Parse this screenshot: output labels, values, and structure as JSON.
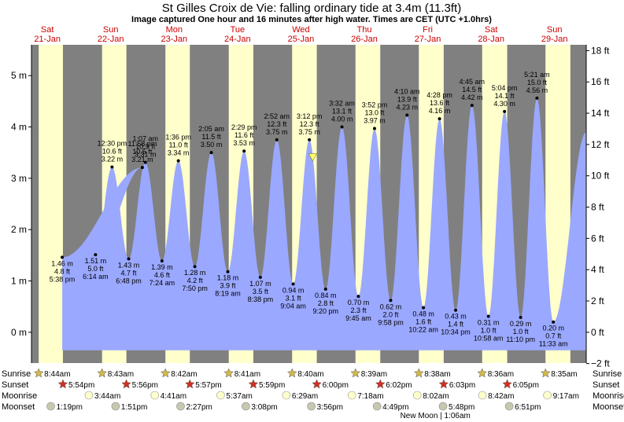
{
  "title": "St Gilles Croix de Vie: falling  ordinary tide at 3.4m (11.3ft)",
  "subtitle": "Image captured One hour and 16 minutes after high water. Times are CET (UTC +1.0hrs)",
  "colors": {
    "night": "#808080",
    "day": "#ffffcc",
    "tide_fill": "#9aa8ff",
    "day_label": "#cc0000",
    "sunrise_star": "#d4b84a",
    "sunset_star": "#d03020",
    "moonrise_disc": "#ffffcc",
    "moonset_disc": "#c8c8b0",
    "current_marker": "#ffff66"
  },
  "days": [
    {
      "name": "Sat",
      "date": "21-Jan"
    },
    {
      "name": "Sun",
      "date": "22-Jan"
    },
    {
      "name": "Mon",
      "date": "23-Jan"
    },
    {
      "name": "Tue",
      "date": "24-Jan"
    },
    {
      "name": "Wed",
      "date": "25-Jan"
    },
    {
      "name": "Thu",
      "date": "26-Jan"
    },
    {
      "name": "Fri",
      "date": "27-Jan"
    },
    {
      "name": "Sat",
      "date": "28-Jan"
    },
    {
      "name": "Sun",
      "date": "29-Jan"
    }
  ],
  "row_labels": {
    "sunrise": "Sunrise",
    "sunset": "Sunset",
    "moonrise": "Moonrise",
    "moonset": "Moonset"
  },
  "sunrise": [
    "8:44am",
    "8:43am",
    "8:42am",
    "8:41am",
    "8:40am",
    "8:39am",
    "8:38am",
    "8:36am",
    "8:35am"
  ],
  "sunset": [
    "5:54pm",
    "5:56pm",
    "5:57pm",
    "5:59pm",
    "6:00pm",
    "6:02pm",
    "6:03pm",
    "6:05pm"
  ],
  "moonrise": [
    "3:44am",
    "4:41am",
    "5:37am",
    "6:29am",
    "7:18am",
    "8:02am",
    "8:42am",
    "9:17am"
  ],
  "moonset": [
    "1:19pm",
    "1:51pm",
    "2:27pm",
    "3:08pm",
    "3:56pm",
    "4:49pm",
    "5:48pm",
    "6:51pm"
  ],
  "moon_phase_note": "New Moon | 1:06am",
  "chart_data": {
    "type": "area",
    "title": "St Gilles Croix de Vie: falling  ordinary tide at 3.4m (11.3ft)",
    "left_axis": {
      "unit": "m",
      "range": [
        -0.6,
        5.6
      ],
      "ticks": [
        "0 m",
        "1 m",
        "2 m",
        "3 m",
        "4 m",
        "5 m"
      ]
    },
    "right_axis": {
      "unit": "ft",
      "ticks": [
        "−2 ft",
        "0 ft",
        "2 ft",
        "4 ft",
        "6 ft",
        "8 ft",
        "10 ft",
        "12 ft",
        "14 ft",
        "16 ft",
        "18 ft"
      ]
    },
    "x_range_days": [
      0.25,
      9.0
    ],
    "tides": [
      {
        "type": "low",
        "day": 0,
        "time": "5:38 pm",
        "m": "1.46 m",
        "ft": "4.8 ft",
        "height": 1.46
      },
      {
        "type": "high",
        "day": 1,
        "time": "11:58 pm",
        "m": "3.21 m",
        "ft": "10.5 ft",
        "height": 3.21
      },
      {
        "type": "low",
        "day": 1,
        "time": "6:14 am",
        "m": "1.51 m",
        "ft": "5.0 ft",
        "height": 1.51
      },
      {
        "type": "high",
        "day": 1,
        "time": "12:30 pm",
        "m": "3.22 m",
        "ft": "10.6 ft",
        "height": 3.22
      },
      {
        "type": "low",
        "day": 1,
        "time": "6:48 pm",
        "m": "1.43 m",
        "ft": "4.7 ft",
        "height": 1.43
      },
      {
        "type": "high",
        "day": 2,
        "time": "1:07 am",
        "m": "3.31 m",
        "ft": "10.9 ft",
        "height": 3.31
      },
      {
        "type": "low",
        "day": 2,
        "time": "7:24 am",
        "m": "1.39 m",
        "ft": "4.6 ft",
        "height": 1.39
      },
      {
        "type": "high",
        "day": 2,
        "time": "1:36 pm",
        "m": "3.34 m",
        "ft": "11.0 ft",
        "height": 3.34
      },
      {
        "type": "low",
        "day": 2,
        "time": "7:50 pm",
        "m": "1.28 m",
        "ft": "4.2 ft",
        "height": 1.28
      },
      {
        "type": "high",
        "day": 3,
        "time": "2:05 am",
        "m": "3.50 m",
        "ft": "11.5 ft",
        "height": 3.5
      },
      {
        "type": "low",
        "day": 3,
        "time": "8:19 am",
        "m": "1.18 m",
        "ft": "3.9 ft",
        "height": 1.18
      },
      {
        "type": "high",
        "day": 3,
        "time": "2:29 pm",
        "m": "3.53 m",
        "ft": "11.6 ft",
        "height": 3.53
      },
      {
        "type": "low",
        "day": 3,
        "time": "8:38 pm",
        "m": "1.07 m",
        "ft": "3.5 ft",
        "height": 1.07
      },
      {
        "type": "high",
        "day": 4,
        "time": "2:52 am",
        "m": "3.75 m",
        "ft": "12.3 ft",
        "height": 3.75
      },
      {
        "type": "low",
        "day": 4,
        "time": "9:04 am",
        "m": "0.94 m",
        "ft": "3.1 ft",
        "height": 0.94
      },
      {
        "type": "high",
        "day": 4,
        "time": "3:12 pm",
        "m": "3.75 m",
        "ft": "12.3 ft",
        "height": 3.75
      },
      {
        "type": "low",
        "day": 4,
        "time": "9:20 pm",
        "m": "0.84 m",
        "ft": "2.8 ft",
        "height": 0.84
      },
      {
        "type": "high",
        "day": 5,
        "time": "3:32 am",
        "m": "4.00 m",
        "ft": "13.1 ft",
        "height": 4.0
      },
      {
        "type": "low",
        "day": 5,
        "time": "9:45 am",
        "m": "0.70 m",
        "ft": "2.3 ft",
        "height": 0.7
      },
      {
        "type": "high",
        "day": 5,
        "time": "3:52 pm",
        "m": "3.97 m",
        "ft": "13.0 ft",
        "height": 3.97
      },
      {
        "type": "low",
        "day": 5,
        "time": "9:58 pm",
        "m": "0.62 m",
        "ft": "2.0 ft",
        "height": 0.62
      },
      {
        "type": "high",
        "day": 6,
        "time": "4:10 am",
        "m": "4.23 m",
        "ft": "13.9 ft",
        "height": 4.23
      },
      {
        "type": "low",
        "day": 6,
        "time": "10:22 am",
        "m": "0.48 m",
        "ft": "1.6 ft",
        "height": 0.48
      },
      {
        "type": "high",
        "day": 6,
        "time": "4:28 pm",
        "m": "4.16 m",
        "ft": "13.6 ft",
        "height": 4.16
      },
      {
        "type": "low",
        "day": 6,
        "time": "10:34 pm",
        "m": "0.43 m",
        "ft": "1.4 ft",
        "height": 0.43
      },
      {
        "type": "high",
        "day": 7,
        "time": "4:45 am",
        "m": "4.42 m",
        "ft": "14.5 ft",
        "height": 4.42
      },
      {
        "type": "low",
        "day": 7,
        "time": "10:58 am",
        "m": "0.31 m",
        "ft": "1.0 ft",
        "height": 0.31
      },
      {
        "type": "high",
        "day": 7,
        "time": "5:04 pm",
        "m": "4.30 m",
        "ft": "14.1 ft",
        "height": 4.3
      },
      {
        "type": "low",
        "day": 7,
        "time": "11:10 pm",
        "m": "0.29 m",
        "ft": "1.0 ft",
        "height": 0.29
      },
      {
        "type": "high",
        "day": 8,
        "time": "5:21 am",
        "m": "4.56 m",
        "ft": "15.0 ft",
        "height": 4.56
      },
      {
        "type": "low",
        "day": 8,
        "time": "11:33 am",
        "m": "0.20 m",
        "ft": "0.7 ft",
        "height": 0.2
      }
    ],
    "current": {
      "day": 4,
      "hour": 16.47,
      "height": 3.4
    }
  }
}
